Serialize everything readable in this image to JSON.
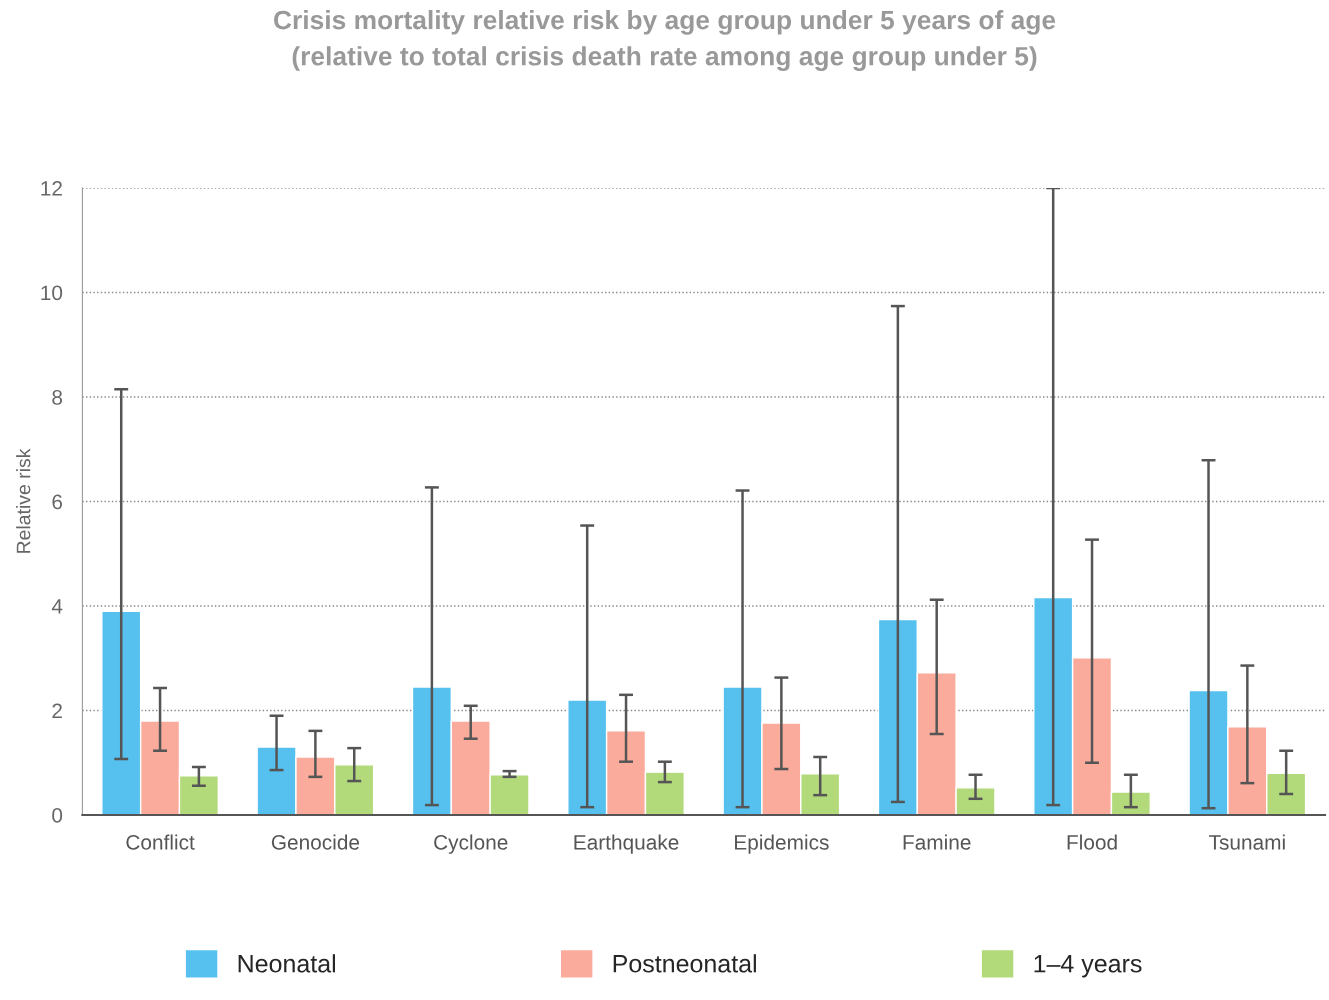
{
  "chart_data": {
    "type": "bar",
    "title": "Crisis mortality relative risk by age group under 5 years of age\n(relative to total crisis death rate among age group under 5)",
    "ylabel": "Relative risk",
    "categories": [
      "Conflict",
      "Genocide",
      "Cyclone",
      "Earthquake",
      "Epidemics",
      "Famine",
      "Flood",
      "Tsunami"
    ],
    "series": [
      {
        "name": "Neonatal",
        "color": "#56c1ef",
        "values": [
          3.9,
          1.3,
          2.45,
          2.2,
          2.45,
          3.74,
          4.16,
          2.38
        ],
        "errors": [
          [
            1.07,
            8.15
          ],
          [
            0.86,
            1.9
          ],
          [
            0.19,
            6.27
          ],
          [
            0.15,
            5.54
          ],
          [
            0.15,
            6.21
          ],
          [
            0.25,
            9.74
          ],
          [
            0.19,
            12.0
          ],
          [
            0.13,
            6.79
          ]
        ]
      },
      {
        "name": "Postneonatal",
        "color": "#fbab9c",
        "values": [
          1.8,
          1.11,
          1.8,
          1.61,
          1.76,
          2.72,
          3.01,
          1.69
        ],
        "errors": [
          [
            1.23,
            2.43
          ],
          [
            0.73,
            1.61
          ],
          [
            1.46,
            2.09
          ],
          [
            1.02,
            2.3
          ],
          [
            0.88,
            2.63
          ],
          [
            1.55,
            4.12
          ],
          [
            1.0,
            5.27
          ],
          [
            0.61,
            2.86
          ]
        ]
      },
      {
        "name": "1–4 years",
        "color": "#b2d97a",
        "values": [
          0.75,
          0.96,
          0.77,
          0.82,
          0.79,
          0.52,
          0.44,
          0.8
        ],
        "errors": [
          [
            0.56,
            0.92
          ],
          [
            0.65,
            1.28
          ],
          [
            0.73,
            0.84
          ],
          [
            0.63,
            1.02
          ],
          [
            0.38,
            1.11
          ],
          [
            0.31,
            0.77
          ],
          [
            0.15,
            0.77
          ],
          [
            0.4,
            1.23
          ]
        ]
      }
    ],
    "ylim": [
      0,
      12
    ],
    "yticks": [
      0,
      2,
      4,
      6,
      8,
      10,
      12
    ],
    "grid": "y",
    "legend": "bottom"
  }
}
